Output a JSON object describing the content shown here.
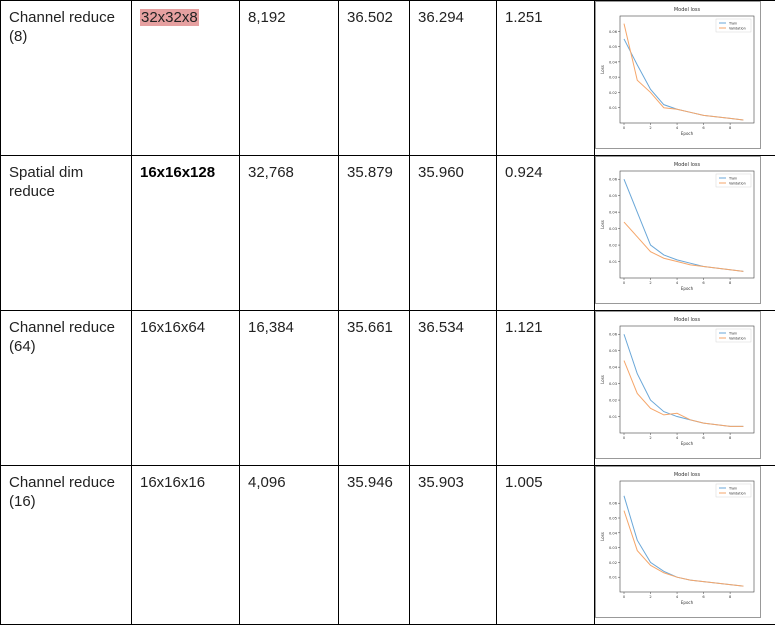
{
  "colors": {
    "train": "#6aa7d8",
    "validation": "#f5a66a",
    "highlight": "#e6a0a0"
  },
  "rows": [
    {
      "method": "Channel reduce (8)",
      "shape": "32x32x8",
      "shape_style": "highlight",
      "size": "8,192",
      "v1": "36.502",
      "v2": "36.294",
      "v3": "1.251",
      "chart": {
        "title": "Model loss",
        "xlabel": "Epoch",
        "ylabel": "Loss",
        "legend": [
          "Train",
          "Validation"
        ],
        "yticks": [
          "0.06",
          "0.05",
          "0.04",
          "0.03",
          "0.02",
          "0.01"
        ],
        "xticks": [
          "0",
          "2",
          "4",
          "6",
          "8"
        ]
      }
    },
    {
      "method": "Spatial dim reduce",
      "shape": "16x16x128",
      "shape_style": "bold",
      "size": "32,768",
      "v1": "35.879",
      "v2": "35.960",
      "v3": "0.924",
      "chart": {
        "title": "Model loss",
        "xlabel": "Epoch",
        "ylabel": "Loss",
        "legend": [
          "Train",
          "Validation"
        ],
        "yticks": [
          "0.06",
          "0.05",
          "0.04",
          "0.03",
          "0.02",
          "0.01"
        ],
        "xticks": [
          "0",
          "2",
          "4",
          "6",
          "8"
        ]
      }
    },
    {
      "method": "Channel reduce (64)",
      "shape": "16x16x64",
      "shape_style": "normal",
      "size": "16,384",
      "v1": "35.661",
      "v2": "36.534",
      "v3": "1.121",
      "chart": {
        "title": "Model loss",
        "xlabel": "Epoch",
        "ylabel": "Loss",
        "legend": [
          "Train",
          "Validation"
        ],
        "yticks": [
          "0.06",
          "0.05",
          "0.04",
          "0.03",
          "0.02",
          "0.01"
        ],
        "xticks": [
          "0",
          "2",
          "4",
          "6",
          "8"
        ]
      }
    },
    {
      "method": "Channel reduce (16)",
      "shape": "16x16x16",
      "shape_style": "normal",
      "size": "4,096",
      "v1": "35.946",
      "v2": "35.903",
      "v3": "1.005",
      "chart": {
        "title": "Model loss",
        "xlabel": "Epoch",
        "ylabel": "Loss",
        "legend": [
          "Train",
          "Validation"
        ],
        "yticks": [
          "0.06",
          "0.05",
          "0.04",
          "0.03",
          "0.02",
          "0.01"
        ],
        "xticks": [
          "0",
          "2",
          "4",
          "6",
          "8"
        ]
      }
    }
  ],
  "chart_data": [
    {
      "type": "line",
      "title": "Model loss",
      "xlabel": "Epoch",
      "ylabel": "Loss",
      "x": [
        0,
        1,
        2,
        3,
        4,
        5,
        6,
        7,
        8,
        9
      ],
      "ylim": [
        0.0,
        0.07
      ],
      "series": [
        {
          "name": "Train",
          "values": [
            0.055,
            0.038,
            0.022,
            0.012,
            0.009,
            0.007,
            0.005,
            0.004,
            0.003,
            0.002
          ]
        },
        {
          "name": "Validation",
          "values": [
            0.065,
            0.028,
            0.02,
            0.01,
            0.009,
            0.007,
            0.005,
            0.004,
            0.003,
            0.002
          ]
        }
      ]
    },
    {
      "type": "line",
      "title": "Model loss",
      "xlabel": "Epoch",
      "ylabel": "Loss",
      "x": [
        0,
        1,
        2,
        3,
        4,
        5,
        6,
        7,
        8,
        9
      ],
      "ylim": [
        0.0,
        0.065
      ],
      "series": [
        {
          "name": "Train",
          "values": [
            0.06,
            0.04,
            0.02,
            0.014,
            0.011,
            0.009,
            0.007,
            0.006,
            0.005,
            0.004
          ]
        },
        {
          "name": "Validation",
          "values": [
            0.034,
            0.025,
            0.016,
            0.012,
            0.01,
            0.008,
            0.007,
            0.006,
            0.005,
            0.004
          ]
        }
      ]
    },
    {
      "type": "line",
      "title": "Model loss",
      "xlabel": "Epoch",
      "ylabel": "Loss",
      "x": [
        0,
        1,
        2,
        3,
        4,
        5,
        6,
        7,
        8,
        9
      ],
      "ylim": [
        0.0,
        0.065
      ],
      "series": [
        {
          "name": "Train",
          "values": [
            0.06,
            0.036,
            0.02,
            0.013,
            0.01,
            0.008,
            0.006,
            0.005,
            0.004,
            0.004
          ]
        },
        {
          "name": "Validation",
          "values": [
            0.044,
            0.024,
            0.015,
            0.011,
            0.012,
            0.008,
            0.006,
            0.005,
            0.004,
            0.004
          ]
        }
      ]
    },
    {
      "type": "line",
      "title": "Model loss",
      "xlabel": "Epoch",
      "ylabel": "Loss",
      "x": [
        0,
        1,
        2,
        3,
        4,
        5,
        6,
        7,
        8,
        9
      ],
      "ylim": [
        0.0,
        0.075
      ],
      "series": [
        {
          "name": "Train",
          "values": [
            0.065,
            0.035,
            0.02,
            0.014,
            0.01,
            0.008,
            0.007,
            0.006,
            0.005,
            0.004
          ]
        },
        {
          "name": "Validation",
          "values": [
            0.055,
            0.028,
            0.018,
            0.013,
            0.01,
            0.008,
            0.007,
            0.006,
            0.005,
            0.004
          ]
        }
      ]
    }
  ]
}
